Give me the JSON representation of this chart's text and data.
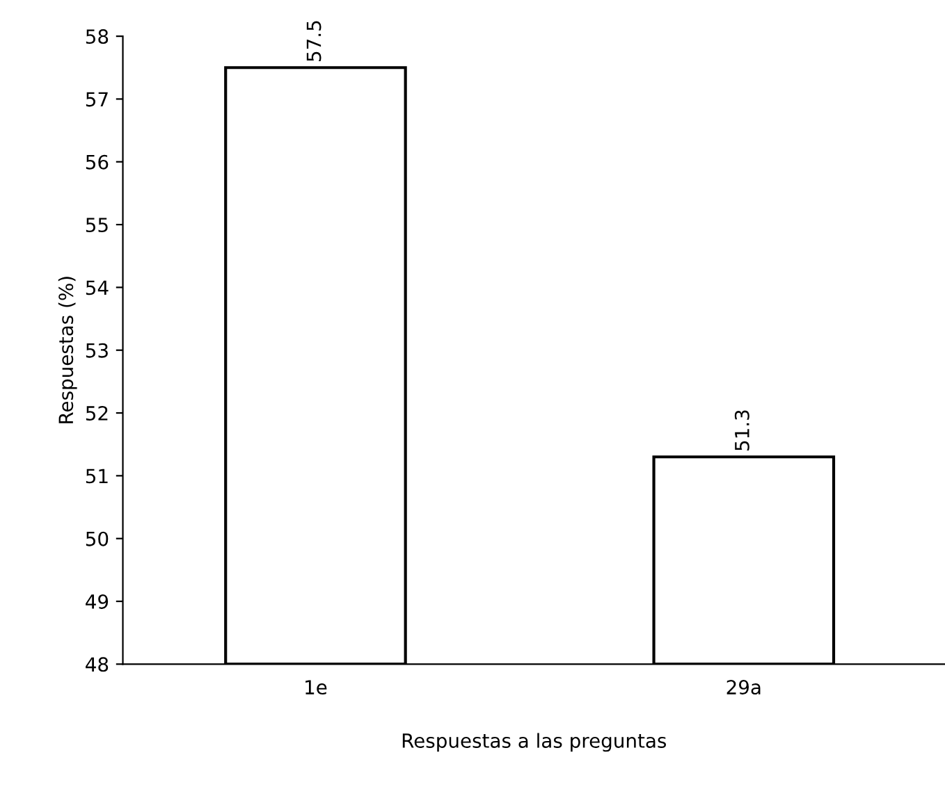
{
  "chart_data": {
    "type": "bar",
    "xlabel": "Respuestas a las preguntas",
    "ylabel": "Respuestas (%)",
    "categories": [
      "1e",
      "29a"
    ],
    "values": [
      57.5,
      51.3
    ],
    "color": "#ffffff",
    "ylim": [
      48,
      58
    ],
    "yticks": [
      48,
      49,
      50,
      51,
      52,
      53,
      54,
      55,
      56,
      57,
      58
    ],
    "data_labels": true,
    "grid": false,
    "legend": false
  }
}
